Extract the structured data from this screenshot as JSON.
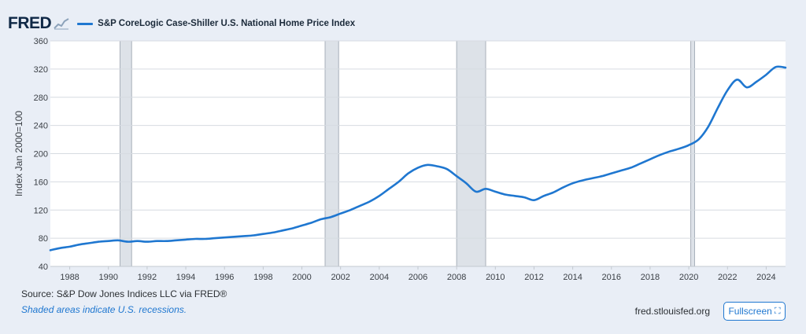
{
  "header": {
    "logo_text": "FRED",
    "logo_icon": "line-graph-icon",
    "legend_label": "S&P CoreLogic Case-Shiller U.S. National Home Price Index"
  },
  "footer": {
    "source": "Source: S&P Dow Jones Indices LLC via FRED®",
    "note": "Shaded areas indicate U.S. recessions.",
    "site": "fred.stlouisfed.org",
    "fullscreen_label": "Fullscreen",
    "fullscreen_icon": "expand-icon"
  },
  "colors": {
    "series": "#1f77d0",
    "recession": "#dde2e8",
    "background": "#e9eef6",
    "plot": "#ffffff"
  },
  "chart_data": {
    "type": "line",
    "title": "",
    "xlabel": "",
    "ylabel": "Index Jan 2000=100",
    "xlim": [
      1987.0,
      2025.0
    ],
    "ylim": [
      40,
      360
    ],
    "yticks": [
      40,
      80,
      120,
      160,
      200,
      240,
      280,
      320,
      360
    ],
    "xticks": [
      1988,
      1990,
      1992,
      1994,
      1996,
      1998,
      2000,
      2002,
      2004,
      2006,
      2008,
      2010,
      2012,
      2014,
      2016,
      2018,
      2020,
      2022,
      2024
    ],
    "grid": true,
    "recessions": [
      [
        1990.6,
        1991.2
      ],
      [
        2001.2,
        2001.9
      ],
      [
        2008.0,
        2009.5
      ],
      [
        2020.1,
        2020.3
      ]
    ],
    "series": [
      {
        "name": "S&P CoreLogic Case-Shiller U.S. National Home Price Index",
        "x": [
          1987.0,
          1987.5,
          1988.0,
          1988.5,
          1989.0,
          1989.5,
          1990.0,
          1990.5,
          1991.0,
          1991.5,
          1992.0,
          1992.5,
          1993.0,
          1993.5,
          1994.0,
          1994.5,
          1995.0,
          1995.5,
          1996.0,
          1996.5,
          1997.0,
          1997.5,
          1998.0,
          1998.5,
          1999.0,
          1999.5,
          2000.0,
          2000.5,
          2001.0,
          2001.5,
          2002.0,
          2002.5,
          2003.0,
          2003.5,
          2004.0,
          2004.5,
          2005.0,
          2005.5,
          2006.0,
          2006.5,
          2007.0,
          2007.5,
          2008.0,
          2008.5,
          2009.0,
          2009.5,
          2010.0,
          2010.5,
          2011.0,
          2011.5,
          2012.0,
          2012.5,
          2013.0,
          2013.5,
          2014.0,
          2014.5,
          2015.0,
          2015.5,
          2016.0,
          2016.5,
          2017.0,
          2017.5,
          2018.0,
          2018.5,
          2019.0,
          2019.5,
          2020.0,
          2020.5,
          2021.0,
          2021.5,
          2022.0,
          2022.5,
          2023.0,
          2023.5,
          2024.0,
          2024.5,
          2025.0
        ],
        "values": [
          63,
          66,
          68,
          71,
          73,
          75,
          76,
          77,
          75,
          76,
          75,
          76,
          76,
          77,
          78,
          79,
          79,
          80,
          81,
          82,
          83,
          84,
          86,
          88,
          91,
          94,
          98,
          102,
          107,
          110,
          115,
          120,
          126,
          132,
          140,
          150,
          160,
          172,
          180,
          184,
          182,
          178,
          168,
          158,
          146,
          150,
          146,
          142,
          140,
          138,
          134,
          140,
          145,
          152,
          158,
          162,
          165,
          168,
          172,
          176,
          180,
          186,
          192,
          198,
          203,
          207,
          212,
          220,
          238,
          265,
          290,
          305,
          294,
          302,
          312,
          323,
          322
        ]
      }
    ]
  }
}
